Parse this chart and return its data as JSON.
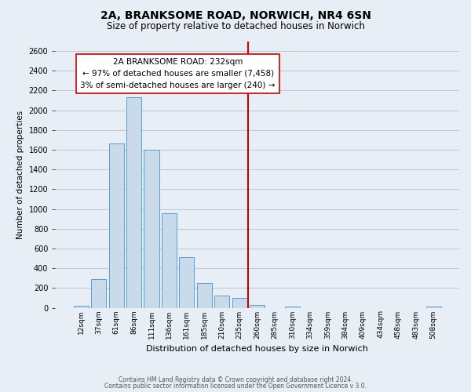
{
  "title": "2A, BRANKSOME ROAD, NORWICH, NR4 6SN",
  "subtitle": "Size of property relative to detached houses in Norwich",
  "xlabel": "Distribution of detached houses by size in Norwich",
  "ylabel": "Number of detached properties",
  "bin_labels": [
    "12sqm",
    "37sqm",
    "61sqm",
    "86sqm",
    "111sqm",
    "136sqm",
    "161sqm",
    "185sqm",
    "210sqm",
    "235sqm",
    "260sqm",
    "285sqm",
    "310sqm",
    "334sqm",
    "359sqm",
    "384sqm",
    "409sqm",
    "434sqm",
    "458sqm",
    "483sqm",
    "508sqm"
  ],
  "bar_heights": [
    20,
    290,
    1660,
    2130,
    1600,
    960,
    510,
    250,
    120,
    100,
    30,
    0,
    15,
    0,
    0,
    0,
    0,
    0,
    0,
    0,
    15
  ],
  "bar_color": "#c9daea",
  "bar_edge_color": "#5a9fd4",
  "property_line_x": 9.5,
  "property_line_color": "#cc0000",
  "annotation_title": "2A BRANKSOME ROAD: 232sqm",
  "annotation_line1": "← 97% of detached houses are smaller (7,458)",
  "annotation_line2": "3% of semi-detached houses are larger (240) →",
  "ylim": [
    0,
    2700
  ],
  "yticks": [
    0,
    200,
    400,
    600,
    800,
    1000,
    1200,
    1400,
    1600,
    1800,
    2000,
    2200,
    2400,
    2600
  ],
  "footer1": "Contains HM Land Registry data © Crown copyright and database right 2024.",
  "footer2": "Contains public sector information licensed under the Open Government Licence v 3.0.",
  "bg_color": "#e8eef5",
  "plot_bg_color": "#e8eef5",
  "grid_color": "#c0c8d4",
  "title_fontsize": 10,
  "subtitle_fontsize": 8.5,
  "ylabel_fontsize": 7.5,
  "xlabel_fontsize": 8,
  "ytick_fontsize": 7,
  "xtick_fontsize": 6.5,
  "annotation_fontsize": 7.5,
  "footer_fontsize": 5.5
}
